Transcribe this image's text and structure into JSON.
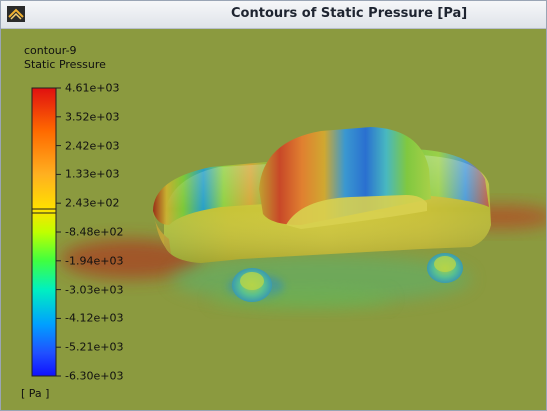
{
  "window": {
    "title": "Contours of Static Pressure [Pa]",
    "app_icon": "fluent-logo-icon"
  },
  "legend": {
    "name": "contour-9",
    "variable": "Static Pressure",
    "units": "[ Pa ]",
    "ticks": [
      "4.61e+03",
      "3.52e+03",
      "2.42e+03",
      "1.33e+03",
      "2.43e+02",
      "-8.48e+02",
      "-1.94e+03",
      "-3.03e+03",
      "-4.12e+03",
      "-5.21e+03",
      "-6.30e+03"
    ],
    "colors": [
      "#ff0000",
      "#ff8000",
      "#ffc000",
      "#ffff00",
      "#80ff00",
      "#00ff40",
      "#00ffc0",
      "#00c0ff",
      "#0060ff",
      "#0000ff"
    ]
  }
}
